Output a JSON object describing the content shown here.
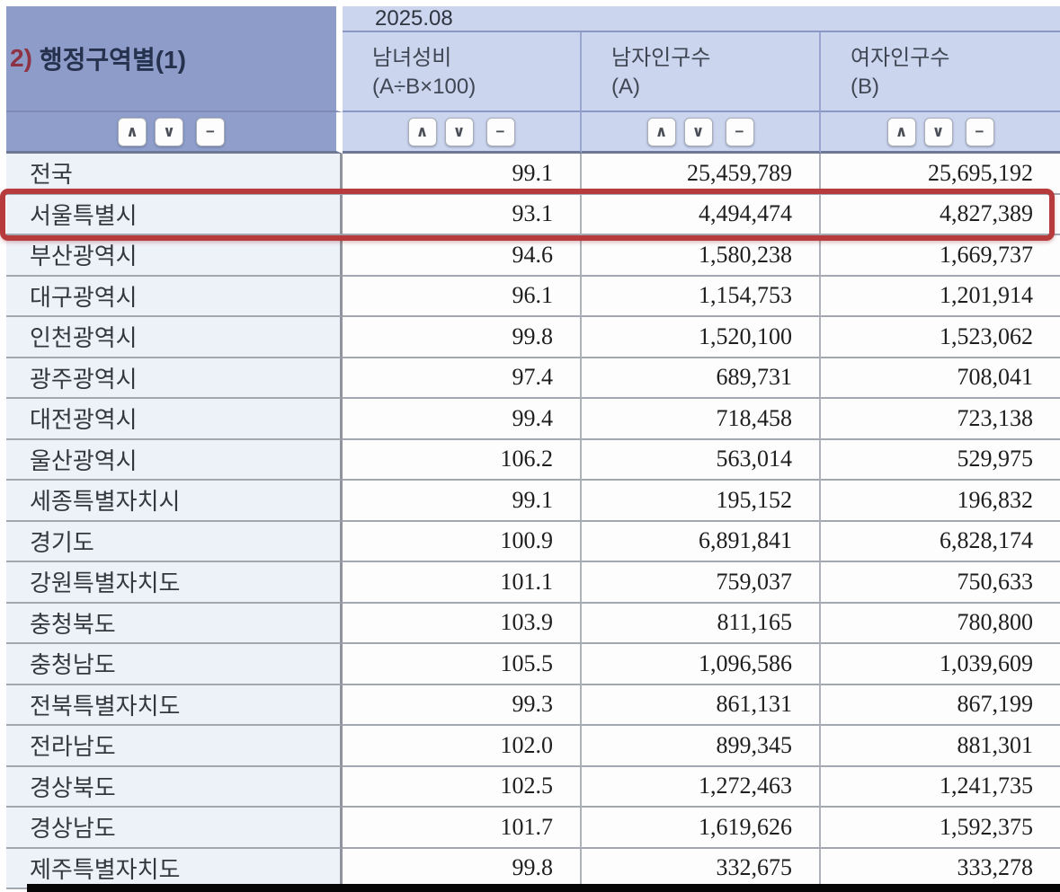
{
  "header": {
    "row_dimension": {
      "prefix": "2)",
      "label": "행정구역별(1)"
    },
    "period": "2025.08",
    "columns": [
      {
        "title": "남녀성비",
        "subtitle": "(A÷B×100)"
      },
      {
        "title": "남자인구수",
        "subtitle": "(A)"
      },
      {
        "title": "여자인구수",
        "subtitle": "(B)"
      }
    ],
    "sort_buttons": {
      "ascending": "∧",
      "descending": "∨",
      "remove": "−"
    }
  },
  "table": {
    "rows": [
      {
        "region": "전국",
        "sex_ratio": "99.1",
        "male_population": "25,459,789",
        "female_population": "25,695,192",
        "highlighted": false
      },
      {
        "region": "서울특별시",
        "sex_ratio": "93.1",
        "male_population": "4,494,474",
        "female_population": "4,827,389",
        "highlighted": true
      },
      {
        "region": "부산광역시",
        "sex_ratio": "94.6",
        "male_population": "1,580,238",
        "female_population": "1,669,737",
        "highlighted": false
      },
      {
        "region": "대구광역시",
        "sex_ratio": "96.1",
        "male_population": "1,154,753",
        "female_population": "1,201,914",
        "highlighted": false
      },
      {
        "region": "인천광역시",
        "sex_ratio": "99.8",
        "male_population": "1,520,100",
        "female_population": "1,523,062",
        "highlighted": false
      },
      {
        "region": "광주광역시",
        "sex_ratio": "97.4",
        "male_population": "689,731",
        "female_population": "708,041",
        "highlighted": false
      },
      {
        "region": "대전광역시",
        "sex_ratio": "99.4",
        "male_population": "718,458",
        "female_population": "723,138",
        "highlighted": false
      },
      {
        "region": "울산광역시",
        "sex_ratio": "106.2",
        "male_population": "563,014",
        "female_population": "529,975",
        "highlighted": false
      },
      {
        "region": "세종특별자치시",
        "sex_ratio": "99.1",
        "male_population": "195,152",
        "female_population": "196,832",
        "highlighted": false
      },
      {
        "region": "경기도",
        "sex_ratio": "100.9",
        "male_population": "6,891,841",
        "female_population": "6,828,174",
        "highlighted": false
      },
      {
        "region": "강원특별자치도",
        "sex_ratio": "101.1",
        "male_population": "759,037",
        "female_population": "750,633",
        "highlighted": false
      },
      {
        "region": "충청북도",
        "sex_ratio": "103.9",
        "male_population": "811,165",
        "female_population": "780,800",
        "highlighted": false
      },
      {
        "region": "충청남도",
        "sex_ratio": "105.5",
        "male_population": "1,096,586",
        "female_population": "1,039,609",
        "highlighted": false
      },
      {
        "region": "전북특별자치도",
        "sex_ratio": "99.3",
        "male_population": "861,131",
        "female_population": "867,199",
        "highlighted": false
      },
      {
        "region": "전라남도",
        "sex_ratio": "102.0",
        "male_population": "899,345",
        "female_population": "881,301",
        "highlighted": false
      },
      {
        "region": "경상북도",
        "sex_ratio": "102.5",
        "male_population": "1,272,463",
        "female_population": "1,241,735",
        "highlighted": false
      },
      {
        "region": "경상남도",
        "sex_ratio": "101.7",
        "male_population": "1,619,626",
        "female_population": "1,592,375",
        "highlighted": false
      },
      {
        "region": "제주특별자치도",
        "sex_ratio": "99.8",
        "male_population": "332,675",
        "female_population": "333,278",
        "highlighted": false
      }
    ]
  },
  "highlight": {
    "row_region": "서울특별시",
    "box_color": "#b73b3c"
  },
  "colors": {
    "header_dark_blue": "#8d9cc9",
    "header_light_blue": "#cbd5ee",
    "region_cell_bg": "#edf1f8",
    "data_cell_bg": "#fdfdfe",
    "title_prefix_red": "#8e3344",
    "title_navy": "#26314e",
    "highlight_red": "#b73b3c"
  }
}
